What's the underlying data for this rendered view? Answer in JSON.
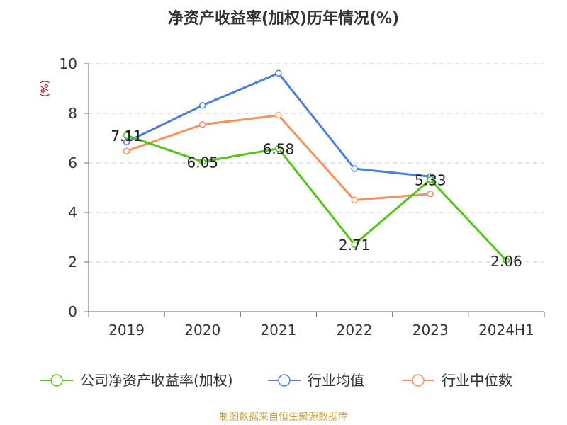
{
  "chart_data": {
    "type": "line",
    "title": "净资产收益率(加权)历年情况(%)",
    "ylabel": "(%)",
    "categories": [
      "2019",
      "2020",
      "2021",
      "2022",
      "2023",
      "2024H1"
    ],
    "ylim": [
      0,
      10
    ],
    "yticks": [
      "0",
      "2",
      "4",
      "6",
      "8",
      "10"
    ],
    "grid": true,
    "legend_position": "bottom",
    "series": [
      {
        "name": "公司净资产收益率(加权)",
        "color": "#52c41a",
        "values": [
          7.11,
          6.05,
          6.58,
          2.71,
          5.33,
          2.06
        ],
        "labels": [
          "7.11",
          "6.05",
          "6.58",
          "2.71",
          "5.33",
          "2.06"
        ]
      },
      {
        "name": "行业均值",
        "color": "#4a7fdd",
        "values": [
          6.85,
          8.32,
          9.62,
          5.77,
          5.45,
          null
        ]
      },
      {
        "name": "行业中位数",
        "color": "#f79059",
        "values": [
          6.48,
          7.55,
          7.92,
          4.5,
          4.75,
          null
        ]
      }
    ]
  },
  "footer": {
    "source": "制图数据来自恒生聚源数据库"
  }
}
